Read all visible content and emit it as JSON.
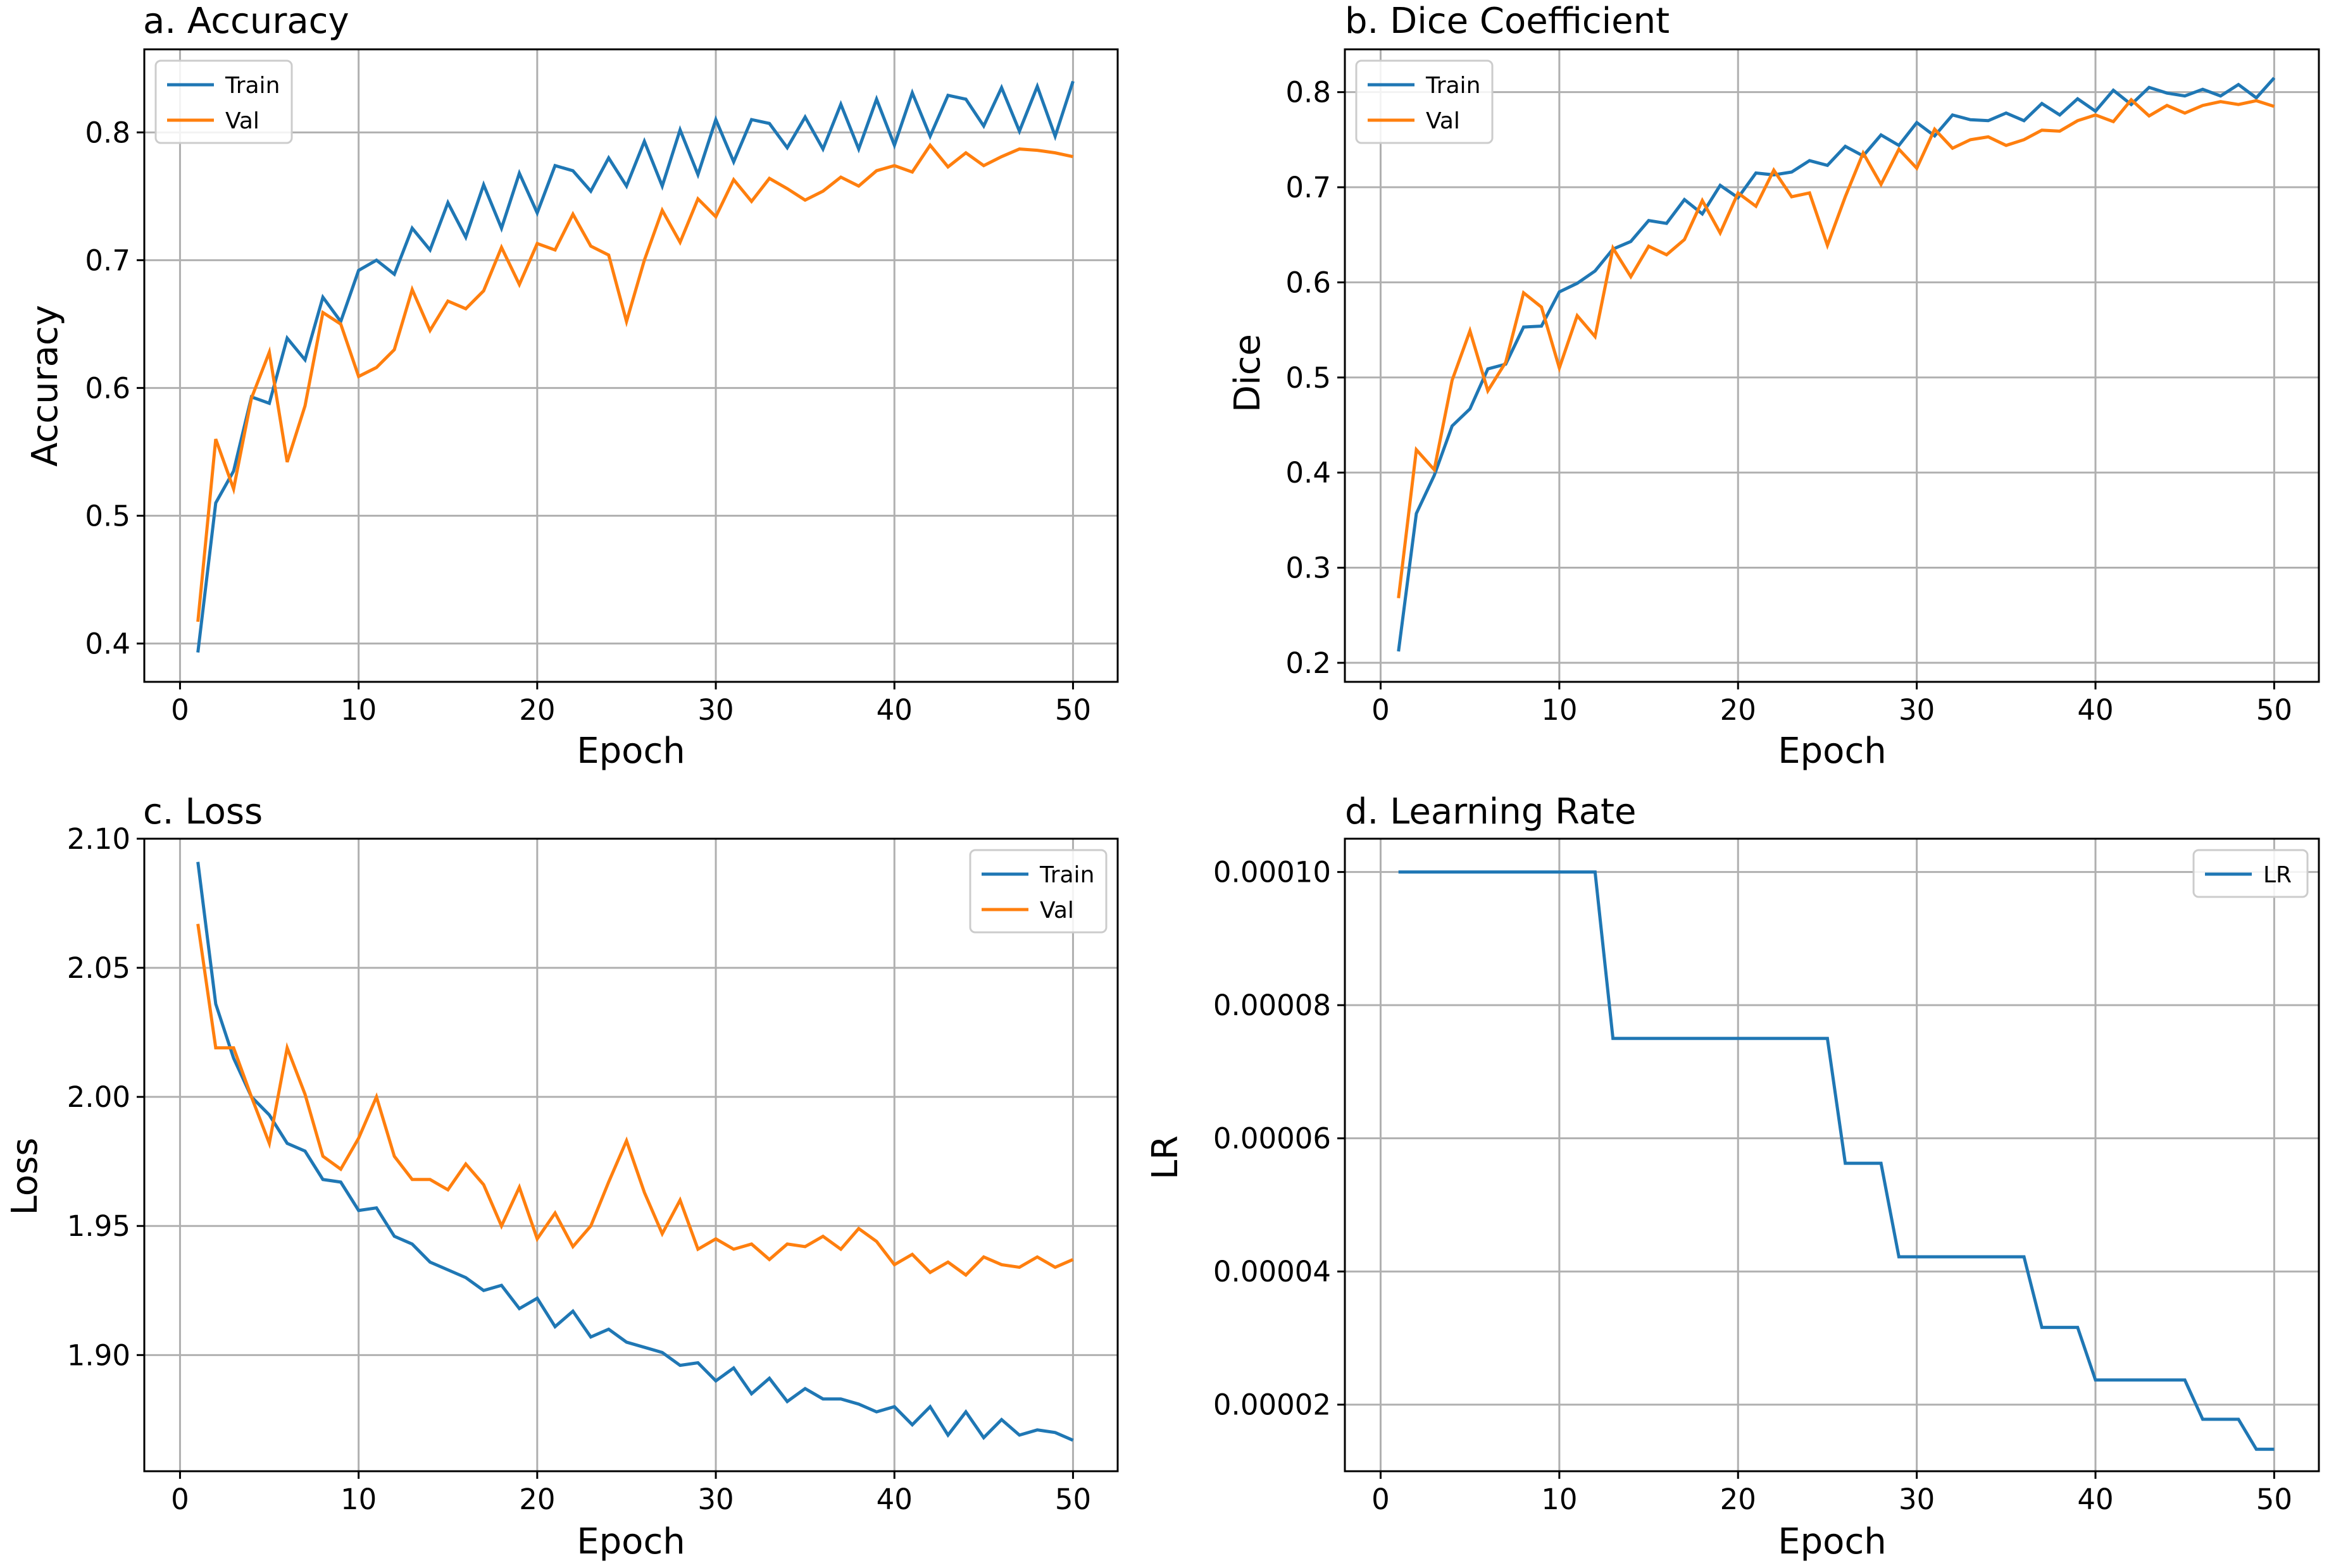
{
  "chart_data": [
    {
      "type": "line",
      "title": "a. Accuracy",
      "xlabel": "Epoch",
      "ylabel": "Accuracy",
      "xlim": [
        -2,
        52.5
      ],
      "ylim": [
        0.37,
        0.865
      ],
      "xticks": [
        0,
        10,
        20,
        30,
        40,
        50
      ],
      "yticks": [
        0.4,
        0.5,
        0.6,
        0.7,
        0.8
      ],
      "grid": true,
      "legend": "upper left",
      "x": [
        1,
        2,
        3,
        4,
        5,
        6,
        7,
        8,
        9,
        10,
        11,
        12,
        13,
        14,
        15,
        16,
        17,
        18,
        19,
        20,
        21,
        22,
        23,
        24,
        25,
        26,
        27,
        28,
        29,
        30,
        31,
        32,
        33,
        34,
        35,
        36,
        37,
        38,
        39,
        40,
        41,
        42,
        43,
        44,
        45,
        46,
        47,
        48,
        49,
        50
      ],
      "series": [
        {
          "name": "Train",
          "color": "#1f77b4",
          "values": [
            0.393,
            0.51,
            0.535,
            0.593,
            0.588,
            0.639,
            0.622,
            0.671,
            0.652,
            0.692,
            0.7,
            0.689,
            0.725,
            0.708,
            0.745,
            0.718,
            0.759,
            0.725,
            0.768,
            0.737,
            0.774,
            0.77,
            0.754,
            0.78,
            0.758,
            0.793,
            0.758,
            0.802,
            0.767,
            0.81,
            0.777,
            0.81,
            0.807,
            0.788,
            0.812,
            0.787,
            0.822,
            0.787,
            0.826,
            0.79,
            0.831,
            0.797,
            0.829,
            0.826,
            0.805,
            0.835,
            0.801,
            0.836,
            0.797,
            0.84
          ]
        },
        {
          "name": "Val",
          "color": "#ff7f0e",
          "values": [
            0.417,
            0.56,
            0.521,
            0.592,
            0.628,
            0.542,
            0.586,
            0.659,
            0.65,
            0.609,
            0.616,
            0.63,
            0.677,
            0.645,
            0.668,
            0.662,
            0.676,
            0.71,
            0.681,
            0.713,
            0.708,
            0.736,
            0.711,
            0.704,
            0.652,
            0.7,
            0.739,
            0.714,
            0.748,
            0.734,
            0.763,
            0.746,
            0.764,
            0.756,
            0.747,
            0.754,
            0.765,
            0.758,
            0.77,
            0.774,
            0.769,
            0.79,
            0.773,
            0.784,
            0.774,
            0.781,
            0.787,
            0.786,
            0.784,
            0.781
          ]
        }
      ]
    },
    {
      "type": "line",
      "title": "b. Dice Coefficient",
      "xlabel": "Epoch",
      "ylabel": "Dice",
      "xlim": [
        -2,
        52.5
      ],
      "ylim": [
        0.18,
        0.845
      ],
      "xticks": [
        0,
        10,
        20,
        30,
        40,
        50
      ],
      "yticks": [
        0.2,
        0.3,
        0.4,
        0.5,
        0.6,
        0.7,
        0.8
      ],
      "grid": true,
      "legend": "upper left",
      "x": [
        1,
        2,
        3,
        4,
        5,
        6,
        7,
        8,
        9,
        10,
        11,
        12,
        13,
        14,
        15,
        16,
        17,
        18,
        19,
        20,
        21,
        22,
        23,
        24,
        25,
        26,
        27,
        28,
        29,
        30,
        31,
        32,
        33,
        34,
        35,
        36,
        37,
        38,
        39,
        40,
        41,
        42,
        43,
        44,
        45,
        46,
        47,
        48,
        49,
        50
      ],
      "series": [
        {
          "name": "Train",
          "color": "#1f77b4",
          "values": [
            0.212,
            0.357,
            0.397,
            0.449,
            0.467,
            0.509,
            0.514,
            0.553,
            0.554,
            0.59,
            0.599,
            0.612,
            0.635,
            0.643,
            0.665,
            0.662,
            0.687,
            0.672,
            0.702,
            0.689,
            0.715,
            0.713,
            0.716,
            0.728,
            0.723,
            0.743,
            0.733,
            0.755,
            0.744,
            0.768,
            0.754,
            0.776,
            0.771,
            0.77,
            0.778,
            0.77,
            0.788,
            0.776,
            0.793,
            0.78,
            0.802,
            0.787,
            0.805,
            0.799,
            0.796,
            0.803,
            0.796,
            0.808,
            0.794,
            0.815
          ]
        },
        {
          "name": "Val",
          "color": "#ff7f0e",
          "values": [
            0.268,
            0.424,
            0.403,
            0.497,
            0.549,
            0.486,
            0.516,
            0.589,
            0.574,
            0.51,
            0.565,
            0.543,
            0.636,
            0.606,
            0.638,
            0.629,
            0.645,
            0.686,
            0.652,
            0.694,
            0.68,
            0.718,
            0.69,
            0.694,
            0.639,
            0.69,
            0.736,
            0.703,
            0.74,
            0.72,
            0.761,
            0.741,
            0.75,
            0.753,
            0.744,
            0.75,
            0.76,
            0.759,
            0.77,
            0.776,
            0.769,
            0.792,
            0.775,
            0.786,
            0.778,
            0.786,
            0.79,
            0.787,
            0.791,
            0.785
          ]
        }
      ]
    },
    {
      "type": "line",
      "title": "c. Loss",
      "xlabel": "Epoch",
      "ylabel": "Loss",
      "xlim": [
        -2,
        52.5
      ],
      "ylim": [
        1.855,
        2.1
      ],
      "xticks": [
        0,
        10,
        20,
        30,
        40,
        50
      ],
      "yticks": [
        1.9,
        1.95,
        2.0,
        2.05,
        2.1
      ],
      "ytick_labels": [
        "1.90",
        "1.95",
        "2.00",
        "2.05",
        "2.10"
      ],
      "grid": true,
      "legend": "upper right",
      "x": [
        1,
        2,
        3,
        4,
        5,
        6,
        7,
        8,
        9,
        10,
        11,
        12,
        13,
        14,
        15,
        16,
        17,
        18,
        19,
        20,
        21,
        22,
        23,
        24,
        25,
        26,
        27,
        28,
        29,
        30,
        31,
        32,
        33,
        34,
        35,
        36,
        37,
        38,
        39,
        40,
        41,
        42,
        43,
        44,
        45,
        46,
        47,
        48,
        49,
        50
      ],
      "series": [
        {
          "name": "Train",
          "color": "#1f77b4",
          "values": [
            2.091,
            2.036,
            2.015,
            2.0,
            1.993,
            1.982,
            1.979,
            1.968,
            1.967,
            1.956,
            1.957,
            1.946,
            1.943,
            1.936,
            1.933,
            1.93,
            1.925,
            1.927,
            1.918,
            1.922,
            1.911,
            1.917,
            1.907,
            1.91,
            1.905,
            1.903,
            1.901,
            1.896,
            1.897,
            1.89,
            1.895,
            1.885,
            1.891,
            1.882,
            1.887,
            1.883,
            1.883,
            1.881,
            1.878,
            1.88,
            1.873,
            1.88,
            1.869,
            1.878,
            1.868,
            1.875,
            1.869,
            1.871,
            1.87,
            1.867
          ]
        },
        {
          "name": "Val",
          "color": "#ff7f0e",
          "values": [
            2.067,
            2.019,
            2.019,
            2.0,
            1.982,
            2.019,
            2.001,
            1.977,
            1.972,
            1.984,
            2.0,
            1.977,
            1.968,
            1.968,
            1.964,
            1.974,
            1.966,
            1.95,
            1.965,
            1.945,
            1.955,
            1.942,
            1.95,
            1.967,
            1.983,
            1.963,
            1.947,
            1.96,
            1.941,
            1.945,
            1.941,
            1.943,
            1.937,
            1.943,
            1.942,
            1.946,
            1.941,
            1.949,
            1.944,
            1.935,
            1.939,
            1.932,
            1.936,
            1.931,
            1.938,
            1.935,
            1.934,
            1.938,
            1.934,
            1.937
          ]
        }
      ]
    },
    {
      "type": "line",
      "title": "d. Learning Rate",
      "xlabel": "Epoch",
      "ylabel": "LR",
      "xlim": [
        -2,
        52.5
      ],
      "ylim": [
        1e-05,
        0.000105
      ],
      "xticks": [
        0,
        10,
        20,
        30,
        40,
        50
      ],
      "yticks": [
        2e-05,
        4e-05,
        6e-05,
        8e-05,
        0.0001
      ],
      "ytick_labels": [
        "0.00002",
        "0.00004",
        "0.00006",
        "0.00008",
        "0.00010"
      ],
      "grid": true,
      "legend": "upper right",
      "x": [
        1,
        2,
        3,
        4,
        5,
        6,
        7,
        8,
        9,
        10,
        11,
        12,
        13,
        14,
        15,
        16,
        17,
        18,
        19,
        20,
        21,
        22,
        23,
        24,
        25,
        26,
        27,
        28,
        29,
        30,
        31,
        32,
        33,
        34,
        35,
        36,
        37,
        38,
        39,
        40,
        41,
        42,
        43,
        44,
        45,
        46,
        47,
        48,
        49,
        50
      ],
      "series": [
        {
          "name": "LR",
          "color": "#1f77b4",
          "values": [
            0.0001,
            0.0001,
            0.0001,
            0.0001,
            0.0001,
            0.0001,
            0.0001,
            0.0001,
            0.0001,
            0.0001,
            0.0001,
            0.0001,
            7.5e-05,
            7.5e-05,
            7.5e-05,
            7.5e-05,
            7.5e-05,
            7.5e-05,
            7.5e-05,
            7.5e-05,
            7.5e-05,
            7.5e-05,
            7.5e-05,
            7.5e-05,
            7.5e-05,
            5.625e-05,
            5.625e-05,
            5.625e-05,
            4.22e-05,
            4.22e-05,
            4.22e-05,
            4.22e-05,
            4.22e-05,
            4.22e-05,
            4.22e-05,
            4.22e-05,
            3.16e-05,
            3.16e-05,
            3.16e-05,
            2.37e-05,
            2.37e-05,
            2.37e-05,
            2.37e-05,
            2.37e-05,
            2.37e-05,
            1.78e-05,
            1.78e-05,
            1.78e-05,
            1.33e-05,
            1.33e-05
          ]
        }
      ]
    }
  ]
}
